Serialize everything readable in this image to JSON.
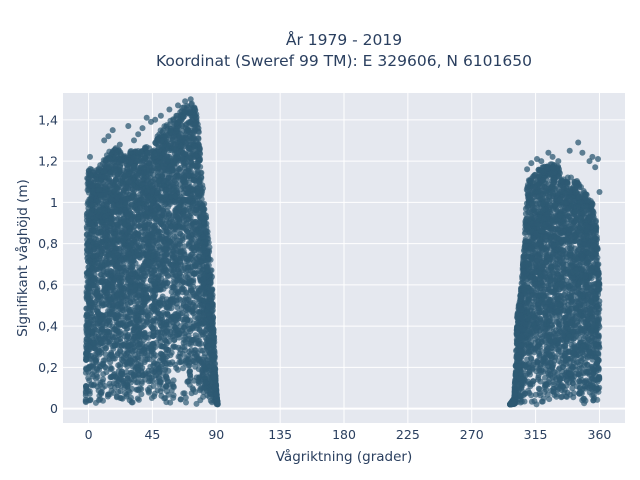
{
  "chart_data": {
    "type": "scatter",
    "title": "År 1979 - 2019",
    "subtitle": "Koordinat (Sweref 99 TM): E 329606, N 6101650",
    "xlabel": "Vågriktning (grader)",
    "ylabel": "Signifikant våghöjd (m)",
    "xlim": [
      -18,
      378
    ],
    "ylim": [
      -0.07,
      1.53
    ],
    "x_ticks": [
      0,
      45,
      90,
      135,
      180,
      225,
      270,
      315,
      360
    ],
    "y_ticks": [
      0,
      0.2,
      0.4,
      0.6,
      0.8,
      1,
      1.2,
      1.4
    ],
    "y_tick_labels": [
      "0",
      "0,2",
      "0,4",
      "0,6",
      "0,8",
      "1",
      "1,2",
      "1,4"
    ],
    "grid": true,
    "marker_color": "#2e5a73",
    "background_color": "#e5e8ef",
    "clusters": [
      {
        "envelope": [
          [
            -2,
            0.02
          ],
          [
            -1,
            1.17
          ],
          [
            5,
            1.15
          ],
          [
            10,
            1.2
          ],
          [
            15,
            1.25
          ],
          [
            20,
            1.27
          ],
          [
            25,
            1.22
          ],
          [
            30,
            1.25
          ],
          [
            35,
            1.25
          ],
          [
            40,
            1.28
          ],
          [
            45,
            1.25
          ],
          [
            50,
            1.35
          ],
          [
            55,
            1.38
          ],
          [
            60,
            1.42
          ],
          [
            65,
            1.45
          ],
          [
            70,
            1.49
          ],
          [
            74,
            1.48
          ],
          [
            77,
            1.42
          ],
          [
            79,
            1.2
          ],
          [
            82,
            0.98
          ],
          [
            85,
            0.8
          ],
          [
            87,
            0.65
          ],
          [
            88,
            0.45
          ],
          [
            89,
            0.25
          ],
          [
            90,
            0.1
          ],
          [
            91,
            0.02
          ]
        ],
        "outliers": [
          [
            1,
            1.22
          ],
          [
            11,
            1.3
          ],
          [
            14,
            1.32
          ],
          [
            17,
            1.35
          ],
          [
            22,
            1.28
          ],
          [
            26,
            1.2
          ],
          [
            28,
            1.37
          ],
          [
            32,
            1.3
          ],
          [
            35,
            1.33
          ],
          [
            38,
            1.36
          ],
          [
            41,
            1.41
          ],
          [
            44,
            1.39
          ],
          [
            47,
            1.4
          ],
          [
            51,
            1.42
          ],
          [
            57,
            1.45
          ],
          [
            63,
            1.47
          ],
          [
            68,
            1.49
          ],
          [
            72,
            1.5
          ],
          [
            91,
            0.02
          ]
        ]
      },
      {
        "envelope": [
          [
            297,
            0.02
          ],
          [
            300,
            0.05
          ],
          [
            302,
            0.45
          ],
          [
            305,
            0.6
          ],
          [
            307,
            0.8
          ],
          [
            309,
            1.1
          ],
          [
            312,
            1.12
          ],
          [
            315,
            1.15
          ],
          [
            320,
            1.17
          ],
          [
            325,
            1.2
          ],
          [
            330,
            1.18
          ],
          [
            335,
            1.15
          ],
          [
            340,
            1.12
          ],
          [
            345,
            1.1
          ],
          [
            350,
            1.05
          ],
          [
            355,
            1.0
          ],
          [
            358,
            0.9
          ],
          [
            360,
            0.6
          ],
          [
            360,
            0.02
          ]
        ],
        "outliers": [
          [
            298,
            0.02
          ],
          [
            309,
            1.16
          ],
          [
            312,
            1.19
          ],
          [
            316,
            1.21
          ],
          [
            319,
            1.2
          ],
          [
            324,
            1.24
          ],
          [
            327,
            1.22
          ],
          [
            331,
            1.2
          ],
          [
            339,
            1.25
          ],
          [
            345,
            1.29
          ],
          [
            348,
            1.24
          ],
          [
            353,
            1.2
          ],
          [
            355,
            1.22
          ],
          [
            357,
            1.17
          ],
          [
            359,
            1.21
          ],
          [
            360,
            1.05
          ]
        ]
      }
    ]
  }
}
